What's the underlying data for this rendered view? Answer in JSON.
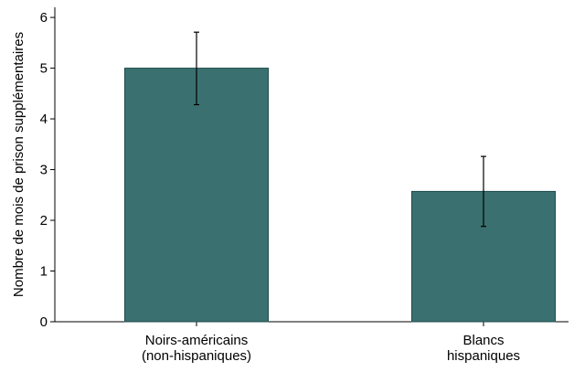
{
  "chart_data": {
    "type": "bar",
    "categories": [
      [
        "Noirs-américains",
        "(non-hispaniques)"
      ],
      [
        "Blancs",
        "hispaniques"
      ]
    ],
    "values": [
      5.0,
      2.57
    ],
    "error_bars": [
      {
        "low": 4.28,
        "high": 5.71
      },
      {
        "low": 1.88,
        "high": 3.26
      }
    ],
    "title": "",
    "xlabel": "",
    "ylabel": "Nombre de mois de prison supplémentaires",
    "ylim": [
      0,
      6.2
    ],
    "yticks": [
      0,
      1,
      2,
      3,
      4,
      5,
      6
    ],
    "grid": false,
    "colors": {
      "bar": "#3a7070",
      "bar_edge": "#1f4a4a",
      "error": "#000000",
      "axis": "#000000"
    }
  }
}
